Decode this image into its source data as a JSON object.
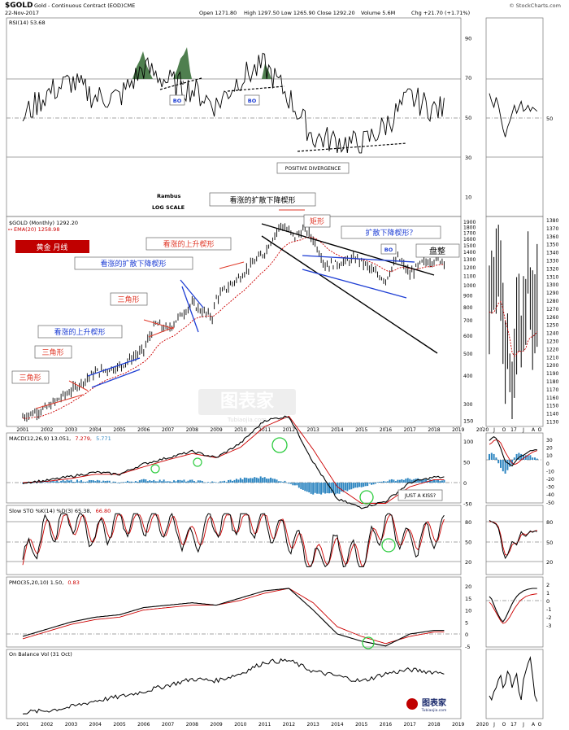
{
  "header": {
    "symbol": "$GOLD",
    "name": "Gold - Continuous Contract (EOD)",
    "exchange": "CME",
    "date": "22-Nov-2017",
    "open": "Open 1271.80",
    "high": "High 1297.50",
    "low": "Low 1265.90",
    "close": "Close 1292.20",
    "volume": "Volume 5.6M",
    "change": "Chg +21.70 (+1.71%)",
    "source": "© StockCharts.com"
  },
  "labels": {
    "rambus": "Rambus",
    "log_scale": "LOG SCALE",
    "bo1": "BO",
    "bo2": "BO",
    "bo3": "BO",
    "positive_divergence": "POSITIVE DIVERGENCE",
    "just_a_kiss": "JUST A KISS?",
    "gold_monthly": "黄金  月线",
    "triangle1": "三角形",
    "triangle2": "三角形",
    "triangle3": "三角形",
    "rising_wedge_1": "看涨的上升楔形",
    "expanding_falling_wedge_1": "看涨的扩散下降楔形",
    "rising_wedge_2": "看涨的上升楔形",
    "expanding_falling_wedge_top": "看涨的扩散下降楔形",
    "rectangle": "矩形",
    "expanding_falling_wedge_q": "扩散下降楔形？",
    "consolidation": "盘整",
    "watermark": "图表家",
    "watermark_url": "Tubiaojia.com",
    "logo_text": "图表家",
    "logo_url": "Tubiaojia.com"
  },
  "legend": {
    "rsi": "RSI(14) 53.68",
    "price": "$GOLD (Monthly) 1292.20",
    "ema": "EMA(20) 1258.98",
    "macd_prefix": "MACD(12,26,9) 13.051,",
    "macd_a": "7.279,",
    "macd_b": "5.771",
    "sto_prefix": "Slow STO %K(14) %D(3) 65.38,",
    "sto_b": "66.80",
    "pmo_prefix": "PMO(35,20,10) 1.50,",
    "pmo_b": "0.83",
    "obv": "On Balance Vol (31 Oct)"
  },
  "colors": {
    "price_line": "#000000",
    "ema_line": "#cc0000",
    "macd_hist": "#2e86c1",
    "trend_blue": "#1f3fd4",
    "trend_red": "#e03a2a",
    "rsi_fill": "#4f7f4f",
    "annotation_green": "#2ecc40",
    "box_red": "#c00000"
  },
  "axes": {
    "years": [
      "2001",
      "2002",
      "2003",
      "2004",
      "2005",
      "2006",
      "2007",
      "2008",
      "2009",
      "2010",
      "2011",
      "2012",
      "2013",
      "2014",
      "2015",
      "2016",
      "2017",
      "2018",
      "2019",
      "2020"
    ],
    "rsi_ticks": [
      "90",
      "70",
      "50",
      "30",
      "10"
    ],
    "price_ticks": [
      "1900",
      "1800",
      "1700",
      "1600",
      "1500",
      "1400",
      "1300",
      "1200",
      "1100",
      "1000",
      "900",
      "800",
      "700",
      "600",
      "500",
      "400",
      "300"
    ],
    "macd_ticks": [
      "150",
      "100",
      "50",
      "0",
      "-50"
    ],
    "sto_ticks": [
      "80",
      "50",
      "20"
    ],
    "pmo_ticks": [
      "20",
      "15",
      "10",
      "5",
      "0",
      "-5"
    ],
    "right_price_ticks": [
      "1380",
      "1370",
      "1360",
      "1350",
      "1340",
      "1330",
      "1320",
      "1310",
      "1300",
      "1290",
      "1280",
      "1270",
      "1260",
      "1250",
      "1240",
      "1230",
      "1220",
      "1210",
      "1200",
      "1190",
      "1180",
      "1170",
      "1160",
      "1150",
      "1140",
      "1130"
    ],
    "right_rsi_ticks": [
      "50"
    ],
    "right_macd_ticks": [
      "30",
      "20",
      "10",
      "0",
      "-10",
      "-20",
      "-30",
      "-40",
      "-50"
    ],
    "right_sto_ticks": [
      "80",
      "50",
      "20"
    ],
    "right_pmo_ticks": [
      "2",
      "1",
      "0",
      "-1",
      "-2",
      "-3"
    ],
    "right_months": [
      "J",
      "O",
      "17",
      "J",
      "A",
      "O"
    ]
  },
  "chart_data": [
    {
      "type": "line",
      "title": "$GOLD (Monthly) 1292.20",
      "ylabel": "",
      "y_scale": "log",
      "ylim": [
        240,
        1950
      ],
      "x": [
        "2001",
        "2002",
        "2003",
        "2004",
        "2005",
        "2006",
        "2007",
        "2008",
        "2009",
        "2010",
        "2011",
        "2012",
        "2013",
        "2014",
        "2015",
        "2016",
        "2017",
        "2018"
      ],
      "series": [
        {
          "name": "$GOLD (Monthly) 1292.20",
          "values": [
            265,
            285,
            350,
            415,
            440,
            530,
            640,
            880,
            880,
            1110,
            1400,
            1700,
            1600,
            1250,
            1170,
            1100,
            1160,
            1292
          ]
        },
        {
          "name": "EMA(20) 1258.98",
          "values": [
            272,
            276,
            310,
            380,
            420,
            470,
            590,
            760,
            860,
            1000,
            1280,
            1600,
            1620,
            1380,
            1250,
            1170,
            1200,
            1259
          ]
        }
      ]
    },
    {
      "type": "line",
      "title": "RSI(14) 53.68",
      "ylim": [
        0,
        100
      ],
      "x": [
        "2001",
        "2002",
        "2003",
        "2004",
        "2005",
        "2006",
        "2007",
        "2008",
        "2009",
        "2010",
        "2011",
        "2012",
        "2013",
        "2014",
        "2015",
        "2016",
        "2017",
        "2018"
      ],
      "series": [
        {
          "name": "RSI(14) 53.68",
          "values": [
            50,
            62,
            68,
            60,
            60,
            75,
            68,
            64,
            56,
            70,
            76,
            60,
            40,
            38,
            36,
            46,
            60,
            54
          ]
        }
      ]
    },
    {
      "type": "bar",
      "title": "MACD(12,26,9) 13.051, 7.279, 5.771",
      "ylim": [
        -80,
        170
      ],
      "x": [
        "2001",
        "2002",
        "2003",
        "2004",
        "2005",
        "2006",
        "2007",
        "2008",
        "2009",
        "2010",
        "2011",
        "2012",
        "2013",
        "2014",
        "2015",
        "2016",
        "2017",
        "2018"
      ],
      "series": [
        {
          "name": "MACD",
          "values": [
            0,
            5,
            15,
            25,
            20,
            45,
            60,
            75,
            60,
            95,
            150,
            160,
            50,
            -40,
            -60,
            -45,
            0,
            13
          ]
        },
        {
          "name": "Signal",
          "values": [
            0,
            3,
            10,
            20,
            20,
            38,
            55,
            70,
            60,
            85,
            135,
            160,
            80,
            -10,
            -50,
            -50,
            -10,
            7
          ]
        }
      ]
    },
    {
      "type": "line",
      "title": "Slow STO %K(14) %D(3) 65.38, 66.80",
      "ylim": [
        0,
        100
      ],
      "x": [
        "2001",
        "2002",
        "2003",
        "2004",
        "2005",
        "2006",
        "2007",
        "2008",
        "2009",
        "2010",
        "2011",
        "2012",
        "2013",
        "2014",
        "2015",
        "2016",
        "2017",
        "2018"
      ],
      "series": [
        {
          "name": "%K",
          "values": [
            20,
            70,
            85,
            60,
            80,
            85,
            75,
            50,
            80,
            85,
            75,
            60,
            20,
            40,
            20,
            85,
            45,
            65
          ]
        },
        {
          "name": "%D",
          "values": [
            25,
            65,
            80,
            65,
            78,
            82,
            75,
            55,
            75,
            82,
            78,
            62,
            25,
            38,
            25,
            80,
            50,
            67
          ]
        }
      ]
    },
    {
      "type": "line",
      "title": "PMO(35,20,10) 1.50, 0.83",
      "ylim": [
        -7,
        21
      ],
      "x": [
        "2001",
        "2002",
        "2003",
        "2004",
        "2005",
        "2006",
        "2007",
        "2008",
        "2009",
        "2010",
        "2011",
        "2012",
        "2013",
        "2014",
        "2015",
        "2016",
        "2017",
        "2018"
      ],
      "series": [
        {
          "name": "PMO",
          "values": [
            -1,
            2,
            5,
            7,
            8,
            11,
            12,
            13,
            12,
            15,
            18,
            19,
            10,
            0,
            -3,
            -5,
            0,
            1.5
          ]
        },
        {
          "name": "Signal",
          "values": [
            -2,
            1,
            4,
            6,
            7,
            10,
            11,
            12,
            12,
            14,
            17,
            19,
            13,
            3,
            -1,
            -4,
            -1,
            0.83
          ]
        }
      ]
    },
    {
      "type": "line",
      "title": "On Balance Vol (31 Oct)",
      "x": [
        "2001",
        "2002",
        "2003",
        "2004",
        "2005",
        "2006",
        "2007",
        "2008",
        "2009",
        "2010",
        "2011",
        "2012",
        "2013",
        "2014",
        "2015",
        "2016",
        "2017",
        "2018"
      ],
      "series": [
        {
          "name": "On Balance Vol (31 Oct)",
          "values": [
            5,
            7,
            12,
            20,
            25,
            32,
            40,
            48,
            46,
            55,
            70,
            72,
            58,
            52,
            45,
            55,
            60,
            57
          ]
        }
      ]
    }
  ]
}
